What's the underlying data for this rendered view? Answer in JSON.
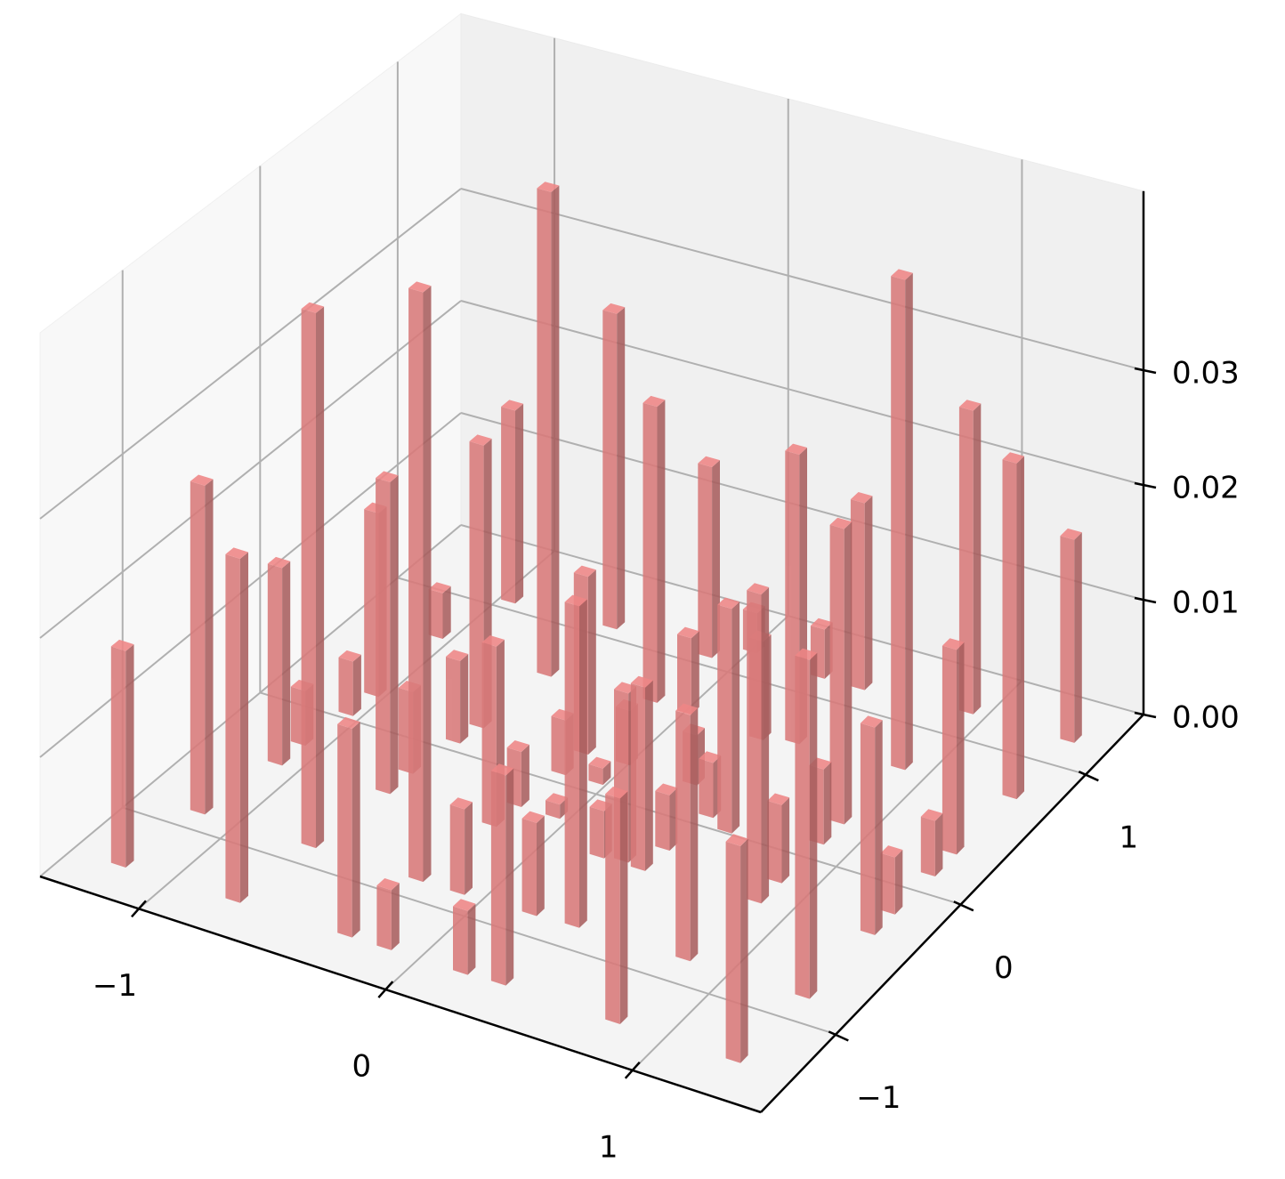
{
  "chart_data": {
    "type": "bar3d",
    "color": "#d97a7a",
    "x": [
      -1.21,
      -1.16,
      -0.75,
      -1.1,
      -1.1,
      -0.71,
      -1.06,
      -0.3,
      -1.05,
      -0.67,
      -0.14,
      -0.67,
      -0.27,
      -1.06,
      -0.63,
      -0.1,
      0.17,
      -0.61,
      -0.96,
      -0.23,
      0.32,
      -0.22,
      -0.58,
      0.19,
      -0.06,
      -0.19,
      0.36,
      -0.19,
      -0.54,
      -0.04,
      0.21,
      -0.02,
      0.79,
      0.3,
      0.38,
      -0.15,
      0.39,
      0.0,
      0.81,
      -0.13,
      0.26,
      0.42,
      0.53,
      1.28,
      0.0,
      0.85,
      0.32,
      0.85,
      0.45,
      1.3,
      0.31,
      0.86,
      0.86,
      0.48,
      1.31,
      1.31,
      0.88,
      1.32,
      1.32,
      0.92,
      1.34,
      1.35
    ],
    "y": [
      -1.34,
      -0.85,
      -1.33,
      -0.39,
      -0.22,
      -0.84,
      0.06,
      -1.32,
      0.23,
      -0.36,
      -1.32,
      -0.19,
      -0.84,
      0.72,
      0.09,
      -0.84,
      -1.32,
      0.23,
      1.08,
      -0.36,
      -1.31,
      -0.19,
      0.68,
      -0.83,
      -0.19,
      0.09,
      -0.82,
      0.26,
      1.1,
      0.1,
      -0.35,
      0.27,
      -1.32,
      -0.33,
      -0.35,
      0.71,
      -0.18,
      0.7,
      -0.81,
      1.09,
      0.27,
      0.1,
      0.04,
      -1.32,
      1.2,
      -0.33,
      0.67,
      -0.17,
      0.71,
      -0.81,
      1.16,
      0.14,
      0.3,
      1.16,
      -0.31,
      -0.15,
      0.74,
      0.15,
      0.32,
      1.2,
      0.76,
      1.2
    ],
    "values": [
      0.0182,
      0.0279,
      0.0288,
      0.0169,
      0.0047,
      0.0452,
      0.0047,
      0.0174,
      0.0159,
      0.0266,
      0.005,
      0.007,
      0.0496,
      0.004,
      0.0071,
      0.0072,
      0.0053,
      0.0244,
      0.017,
      0.0153,
      0.0174,
      0.0047,
      0.0422,
      0.0078,
      0.0012,
      0.0047,
      0.0269,
      0.0153,
      0.0277,
      0.0014,
      0.004,
      0.0047,
      0.0186,
      0.0143,
      0.0155,
      0.0257,
      0.0047,
      0.0066,
      0.0205,
      0.0167,
      0.0043,
      0.0047,
      0.0191,
      0.0178,
      0.0035,
      0.026,
      0.0085,
      0.0066,
      0.025,
      0.0281,
      0.0043,
      0.0064,
      0.0252,
      0.0163,
      0.0174,
      0.0048,
      0.0422,
      0.0047,
      0.0174,
      0.0264,
      0.0288,
      0.0176
    ],
    "xlim": [
      -1.4,
      1.52
    ],
    "ylim": [
      -1.6,
      1.46
    ],
    "zlim": [
      0,
      0.0456
    ],
    "xticks": [
      {
        "value": -1,
        "label": "−1"
      },
      0,
      1
    ],
    "yticks": [
      {
        "value": -1,
        "label": "−1"
      },
      0,
      1
    ],
    "zticks": [
      {
        "value": 0,
        "label": "0.00"
      },
      0.01,
      0.02,
      0.03
    ],
    "grid": true
  }
}
